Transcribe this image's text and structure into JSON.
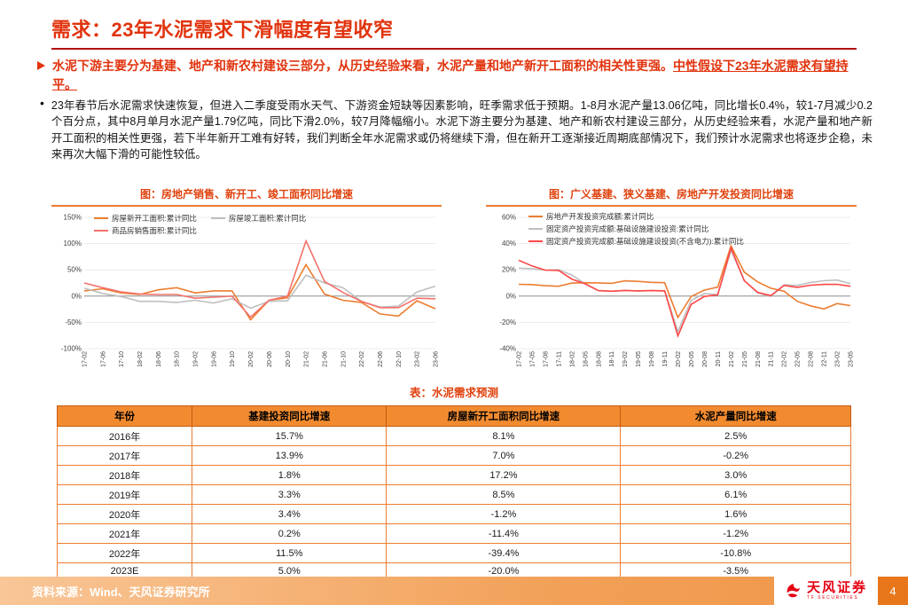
{
  "header": {
    "title": "需求：23年水泥需求下滑幅度有望收窄"
  },
  "bullets": {
    "key_point_part1": "水泥下游主要分为基建、地产和新农村建设三部分，从历史经验来看，水泥产量和地产新开工面积的相关性更强。",
    "key_point_part2": "中性假设下23年水泥需求有望持平。",
    "detail": "23年春节后水泥需求快速恢复，但进入二季度受雨水天气、下游资金短缺等因素影响，旺季需求低于预期。1-8月水泥产量13.06亿吨，同比增长0.4%，较1-7月减少0.2个百分点，其中8月单月水泥产量1.79亿吨，同比下滑2.0%，较7月降幅缩小。水泥下游主要分为基建、地产和新农村建设三部分，从历史经验来看，水泥产量和地产新开工面积的相关性更强，若下半年新开工难有好转，我们判断全年水泥需求或仍将继续下滑，但在新开工逐渐接近周期底部情况下，我们预计水泥需求也将逐步企稳，未来再次大幅下滑的可能性较低。"
  },
  "chart_data": [
    {
      "type": "line",
      "title": "图：房地产销售、新开工、竣工面积同比增速",
      "xlabel": "",
      "ylabel": "",
      "ylim": [
        -100,
        150
      ],
      "ytick": 50,
      "unit": "%",
      "grid": true,
      "legend_position": "top-left",
      "x": [
        "17-02",
        "17-06",
        "17-10",
        "18-02",
        "18-06",
        "18-10",
        "19-02",
        "19-06",
        "19-10",
        "20-02",
        "20-06",
        "20-10",
        "21-02",
        "21-06",
        "21-10",
        "22-02",
        "22-06",
        "22-10",
        "23-02",
        "23-06"
      ],
      "series": [
        {
          "name": "房屋新开工面积:累计同比",
          "color": "#ED7D31",
          "values": [
            10,
            14,
            6,
            3,
            12,
            16,
            6,
            10,
            10,
            -45,
            -8,
            -3,
            60,
            4,
            -8,
            -12,
            -34,
            -38,
            -9,
            -24
          ]
        },
        {
          "name": "房屋竣工面积:累计同比",
          "color": "#BFBFBF",
          "values": [
            15,
            5,
            -1,
            -10,
            -10,
            -12,
            -8,
            -13,
            -5,
            -23,
            -10,
            -9,
            40,
            25,
            16,
            -10,
            -21,
            -19,
            8,
            19
          ]
        },
        {
          "name": "商品房销售面积:累计同比",
          "color": "#F4726B",
          "values": [
            25,
            16,
            8,
            4,
            3,
            3,
            -4,
            -2,
            0,
            -40,
            -8,
            0,
            105,
            28,
            7,
            -10,
            -22,
            -22,
            -4,
            -5
          ]
        }
      ]
    },
    {
      "type": "line",
      "title": "图：广义基建、狭义基建、房地产开发投资同比增速",
      "xlabel": "",
      "ylabel": "",
      "ylim": [
        -40,
        60
      ],
      "ytick": 20,
      "unit": "%",
      "grid": true,
      "legend_position": "top-left",
      "x": [
        "17-02",
        "17-05",
        "17-08",
        "17-11",
        "18-02",
        "18-05",
        "18-08",
        "18-11",
        "19-02",
        "19-05",
        "19-08",
        "19-11",
        "20-02",
        "20-05",
        "20-08",
        "20-11",
        "21-02",
        "21-05",
        "21-08",
        "21-11",
        "22-02",
        "22-05",
        "22-08",
        "22-11",
        "23-02",
        "23-05"
      ],
      "series": [
        {
          "name": "房地产开发投资完成额:累计同比",
          "color": "#ED7D31",
          "values": [
            9,
            8.8,
            7.9,
            7.5,
            9.9,
            10.2,
            10.1,
            9.7,
            11.6,
            11.2,
            10.5,
            10.2,
            -16.3,
            -0.3,
            4.6,
            6.8,
            38.3,
            18.3,
            10.9,
            6,
            3.7,
            -4,
            -7.4,
            -9.8,
            -5.7,
            -7.2
          ]
        },
        {
          "name": "固定资产投资完成额:基础设施建设投资:累计同比",
          "color": "#BFBFBF",
          "values": [
            21.3,
            20.9,
            19.8,
            20.1,
            16.1,
            9.4,
            4.2,
            3.7,
            4.3,
            4,
            4.2,
            4,
            -26.9,
            -3.3,
            2,
            1,
            35,
            11.8,
            2.6,
            -0.2,
            8.6,
            8.2,
            10.4,
            11.7,
            12.2,
            9.5
          ]
        },
        {
          "name": "固定资产投资完成额:基础设施建设投资(不含电力):累计同比",
          "color": "#FF4747",
          "values": [
            27.3,
            23,
            19.8,
            19.6,
            13,
            9.4,
            4.2,
            3.7,
            4.3,
            4,
            4.2,
            4,
            -30.3,
            -6.3,
            -0.3,
            1,
            36.6,
            11.8,
            2.9,
            0.4,
            8.1,
            6.7,
            8.3,
            8.9,
            9,
            7.5
          ]
        }
      ]
    }
  ],
  "table": {
    "title": "表：水泥需求预测",
    "columns": [
      "年份",
      "基建投资同比增速",
      "房屋新开工面积同比增速",
      "水泥产量同比增速"
    ],
    "rows": [
      {
        "cells": [
          "2016年",
          "15.7%",
          "8.1%",
          "2.5%"
        ],
        "highlight": false
      },
      {
        "cells": [
          "2017年",
          "13.9%",
          "7.0%",
          "-0.2%"
        ],
        "highlight": false
      },
      {
        "cells": [
          "2018年",
          "1.8%",
          "17.2%",
          "3.0%"
        ],
        "highlight": false
      },
      {
        "cells": [
          "2019年",
          "3.3%",
          "8.5%",
          "6.1%"
        ],
        "highlight": false
      },
      {
        "cells": [
          "2020年",
          "3.4%",
          "-1.2%",
          "1.6%"
        ],
        "highlight": false
      },
      {
        "cells": [
          "2021年",
          "0.2%",
          "-11.4%",
          "-1.2%"
        ],
        "highlight": false
      },
      {
        "cells": [
          "2022年",
          "11.5%",
          "-39.4%",
          "-10.8%"
        ],
        "highlight": false
      },
      {
        "cells": [
          "2023E",
          "5.0%",
          "-20.0%",
          "-3.5%"
        ],
        "highlight": true
      }
    ],
    "highlight_color": "#FF0000"
  },
  "footer": {
    "source": "资料来源：Wind、天风证券研究所",
    "logo": "天风证券",
    "logo_sub": "TF SECURITIES",
    "page": "4"
  },
  "colors": {
    "title_red": "#E1330D",
    "accent_orange": "#ED7D31",
    "table_header": "#F28B30",
    "series_gray": "#BFBFBF",
    "series_coral": "#F4726B",
    "series_red": "#FF4747",
    "logo_red": "#E60012"
  }
}
